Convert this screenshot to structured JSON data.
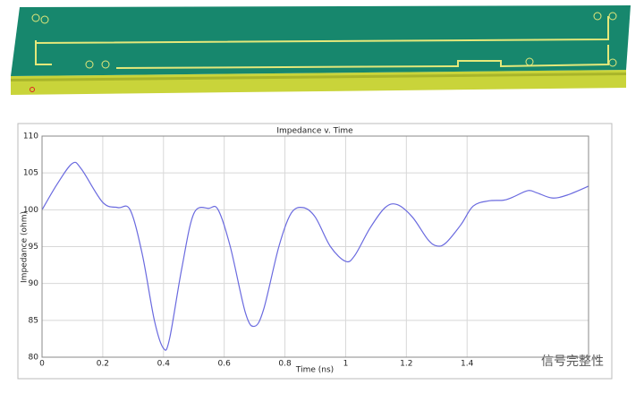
{
  "chart_data": {
    "type": "line",
    "title": "Impedance v. Time",
    "x_label": "Time (ns)",
    "y_label": "Impedance (ohm)",
    "xlim": [
      0,
      1.8
    ],
    "xticks": [
      0,
      0.2,
      0.4,
      0.6,
      0.8,
      1,
      1.2,
      1.4
    ],
    "ylim": [
      80,
      110
    ],
    "yticks": [
      80,
      85,
      90,
      95,
      100,
      105,
      110
    ],
    "grid": true,
    "series": [
      {
        "name": "Impedance",
        "color": "#6a6adf",
        "x": [
          0,
          0.05,
          0.1,
          0.13,
          0.2,
          0.25,
          0.29,
          0.33,
          0.37,
          0.4,
          0.42,
          0.46,
          0.5,
          0.55,
          0.58,
          0.62,
          0.67,
          0.7,
          0.73,
          0.78,
          0.82,
          0.86,
          0.9,
          0.95,
          1.0,
          1.03,
          1.08,
          1.13,
          1.17,
          1.22,
          1.27,
          1.3,
          1.33,
          1.38,
          1.42,
          1.47,
          1.52,
          1.55,
          1.6,
          1.63,
          1.68,
          1.73,
          1.8
        ],
        "values": [
          100,
          103.5,
          106.3,
          105.5,
          101,
          100.3,
          100,
          94,
          85,
          81.2,
          82.5,
          92,
          99.5,
          100.2,
          100,
          95,
          86,
          84.2,
          86.5,
          95,
          99.5,
          100.3,
          99,
          95,
          93,
          93.8,
          97.5,
          100.3,
          100.7,
          99,
          96,
          95.1,
          95.5,
          98,
          100.5,
          101.2,
          101.3,
          101.7,
          102.6,
          102.3,
          101.6,
          102,
          103.2
        ]
      }
    ]
  },
  "watermark": "信号完整性"
}
